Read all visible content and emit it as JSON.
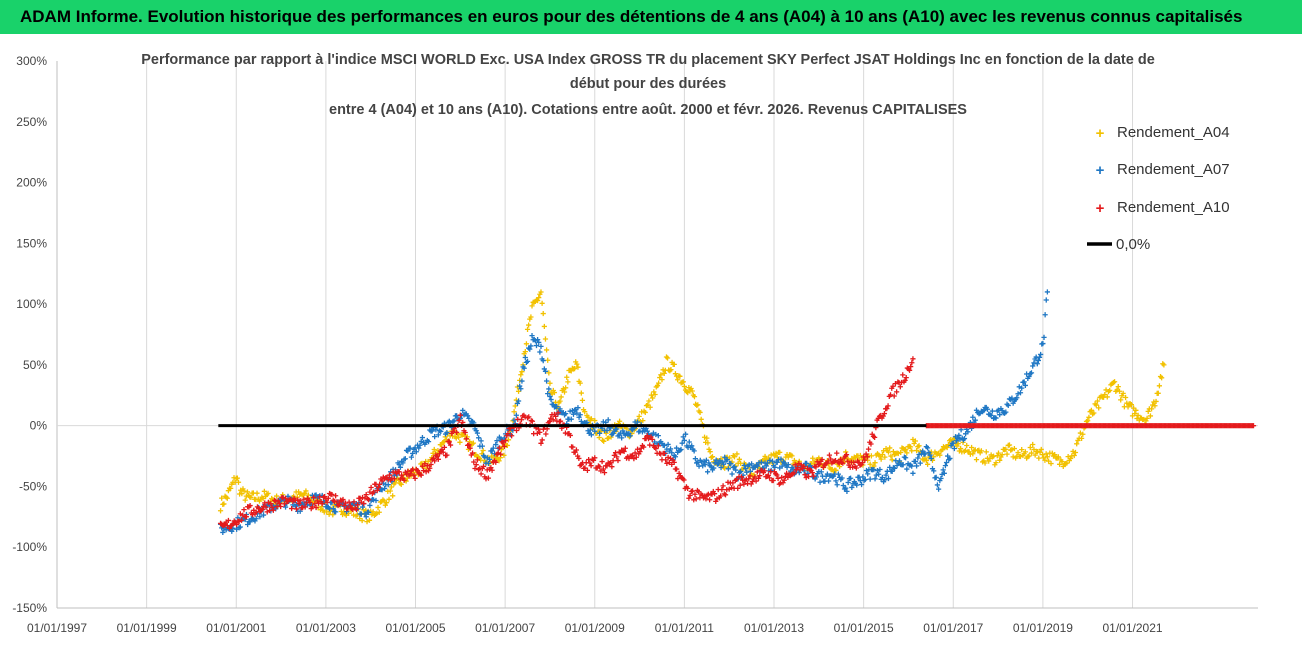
{
  "banner": {
    "text": "ADAM Informe. Evolution historique des performances en euros pour des détentions de 4 ans (A04) à 10 ans (A10) avec les revenus connus capitalisés"
  },
  "chart_data": {
    "type": "scatter",
    "title_lines": [
      "Performance par rapport à l'indice MSCI WORLD Exc. USA Index GROSS TR  du placement SKY Perfect JSAT Holdings Inc en fonction de la date de",
      "début pour des durées",
      "entre 4 (A04) et 10 ans (A10). Cotations entre août. 2000 et févr. 2026. Revenus CAPITALISES"
    ],
    "xlabel": "",
    "ylabel": "",
    "ylim": [
      -150,
      300
    ],
    "xlim": [
      1997.0,
      2023.8
    ],
    "y_ticks": [
      "300%",
      "250%",
      "200%",
      "150%",
      "100%",
      "50%",
      "0%",
      "-50%",
      "-100%",
      "-150%"
    ],
    "y_tick_values": [
      300,
      250,
      200,
      150,
      100,
      50,
      0,
      -50,
      -100,
      -150
    ],
    "x_ticks": [
      "01/01/1997",
      "01/01/1999",
      "01/01/2001",
      "01/01/2003",
      "01/01/2005",
      "01/01/2007",
      "01/01/2009",
      "01/01/2011",
      "01/01/2013",
      "01/01/2015",
      "01/01/2017",
      "01/01/2019",
      "01/01/2021"
    ],
    "x_tick_values": [
      1997,
      1999,
      2001,
      2003,
      2005,
      2007,
      2009,
      2011,
      2013,
      2015,
      2017,
      2019,
      2021
    ],
    "series": [
      {
        "name": "Rendement_A04",
        "color": "#f2c100",
        "marker": "plus",
        "x": [
          2000.65,
          2000.8,
          2001.0,
          2001.1,
          2001.3,
          2001.6,
          2001.9,
          2002.2,
          2002.5,
          2002.8,
          2003.1,
          2003.4,
          2003.7,
          2004.0,
          2004.3,
          2004.6,
          2004.9,
          2005.2,
          2005.5,
          2005.8,
          2006.1,
          2006.4,
          2006.7,
          2007.0,
          2007.2,
          2007.4,
          2007.6,
          2007.8,
          2008.0,
          2008.2,
          2008.4,
          2008.6,
          2008.8,
          2009.0,
          2009.2,
          2009.5,
          2009.8,
          2010.1,
          2010.4,
          2010.6,
          2010.8,
          2011.0,
          2011.2,
          2011.4,
          2011.6,
          2011.9,
          2012.2,
          2012.5,
          2012.8,
          2013.1,
          2013.4,
          2013.7,
          2014.0,
          2014.3,
          2014.6,
          2014.9,
          2015.2,
          2015.5,
          2015.8,
          2016.1,
          2016.4,
          2016.7,
          2017.0,
          2017.3,
          2017.6,
          2017.9,
          2018.2,
          2018.5,
          2018.8,
          2019.1,
          2019.4,
          2019.7,
          2020.0,
          2020.3,
          2020.6,
          2020.9,
          2021.1,
          2021.3,
          2021.5,
          2021.7
        ],
        "values": [
          -65,
          -58,
          -42,
          -55,
          -60,
          -58,
          -62,
          -60,
          -57,
          -63,
          -70,
          -68,
          -72,
          -75,
          -62,
          -48,
          -40,
          -35,
          -20,
          -5,
          -12,
          -22,
          -30,
          -20,
          10,
          55,
          95,
          110,
          30,
          15,
          40,
          50,
          5,
          0,
          -10,
          0,
          -5,
          10,
          30,
          52,
          45,
          35,
          25,
          0,
          -25,
          -30,
          -28,
          -40,
          -30,
          -25,
          -28,
          -35,
          -28,
          -35,
          -25,
          -28,
          -30,
          -22,
          -25,
          -15,
          -28,
          -20,
          -15,
          -18,
          -25,
          -28,
          -20,
          -25,
          -20,
          -25,
          -30,
          -22,
          5,
          20,
          35,
          15,
          10,
          5,
          20,
          50
        ]
      },
      {
        "name": "Rendement_A07",
        "color": "#1f77c4",
        "marker": "plus",
        "x": [
          2000.65,
          2000.9,
          2001.2,
          2001.5,
          2001.8,
          2002.1,
          2002.4,
          2002.7,
          2003.0,
          2003.3,
          2003.6,
          2003.9,
          2004.2,
          2004.5,
          2004.8,
          2005.1,
          2005.4,
          2005.7,
          2006.0,
          2006.3,
          2006.6,
          2006.9,
          2007.2,
          2007.4,
          2007.6,
          2007.8,
          2008.0,
          2008.2,
          2008.4,
          2008.6,
          2008.8,
          2009.0,
          2009.3,
          2009.6,
          2009.9,
          2010.2,
          2010.5,
          2010.8,
          2011.0,
          2011.3,
          2011.6,
          2011.9,
          2012.2,
          2012.5,
          2012.8,
          2013.1,
          2013.4,
          2013.7,
          2014.0,
          2014.3,
          2014.6,
          2014.9,
          2015.2,
          2015.5,
          2015.8,
          2016.1,
          2016.4,
          2016.7,
          2016.9,
          2017.1,
          2017.3,
          2017.6,
          2017.9,
          2018.2,
          2018.5,
          2018.8,
          2019.0,
          2019.1
        ],
        "values": [
          -85,
          -82,
          -78,
          -72,
          -66,
          -62,
          -66,
          -60,
          -62,
          -68,
          -65,
          -70,
          -52,
          -40,
          -25,
          -15,
          -5,
          -2,
          10,
          0,
          -30,
          -10,
          0,
          45,
          70,
          65,
          20,
          10,
          5,
          15,
          0,
          -5,
          0,
          -10,
          0,
          -5,
          -15,
          -25,
          -10,
          -30,
          -35,
          -30,
          -40,
          -32,
          -35,
          -30,
          -38,
          -35,
          -42,
          -40,
          -50,
          -45,
          -38,
          -42,
          -28,
          -35,
          -20,
          -50,
          -25,
          -10,
          -5,
          15,
          10,
          15,
          30,
          50,
          65,
          110
        ]
      },
      {
        "name": "Rendement_A10",
        "color": "#e41a1c",
        "marker": "plus",
        "x": [
          2000.65,
          2000.9,
          2001.2,
          2001.5,
          2001.8,
          2002.1,
          2002.4,
          2002.7,
          2003.0,
          2003.3,
          2003.6,
          2003.9,
          2004.2,
          2004.5,
          2004.8,
          2005.1,
          2005.4,
          2005.7,
          2006.0,
          2006.3,
          2006.6,
          2006.9,
          2007.2,
          2007.5,
          2007.8,
          2008.1,
          2008.4,
          2008.7,
          2009.0,
          2009.3,
          2009.6,
          2009.9,
          2010.2,
          2010.5,
          2010.8,
          2011.1,
          2011.4,
          2011.7,
          2012.0,
          2012.3,
          2012.6,
          2012.9,
          2013.2,
          2013.5,
          2013.8,
          2014.1,
          2014.4,
          2014.7,
          2015.0,
          2015.3,
          2015.6,
          2015.9,
          2016.1
        ],
        "values": [
          -85,
          -80,
          -72,
          -68,
          -65,
          -62,
          -66,
          -64,
          -58,
          -62,
          -68,
          -60,
          -48,
          -40,
          -42,
          -38,
          -30,
          -20,
          5,
          -30,
          -40,
          -20,
          0,
          5,
          -10,
          10,
          -5,
          -35,
          -30,
          -35,
          -20,
          -25,
          -10,
          -25,
          -35,
          -55,
          -60,
          -58,
          -50,
          -45,
          -42,
          -40,
          -45,
          -35,
          -40,
          -30,
          -25,
          -30,
          -30,
          0,
          25,
          40,
          55
        ]
      },
      {
        "name": "0,0%",
        "color": "#000000",
        "marker": "line",
        "x": [
          2000.6,
          2016.4
        ],
        "values": [
          0,
          0
        ]
      }
    ],
    "extra_series": [
      {
        "name": "Rendement_A10 (zero segment)",
        "color": "#e41a1c",
        "x_range": [
          2016.4,
          2023.7
        ],
        "value": 0
      }
    ],
    "legend": {
      "position": "top-right",
      "entries": [
        "Rendement_A04",
        "Rendement_A07",
        "Rendement_A10",
        "0,0%"
      ]
    },
    "grid": "vertical-major"
  }
}
